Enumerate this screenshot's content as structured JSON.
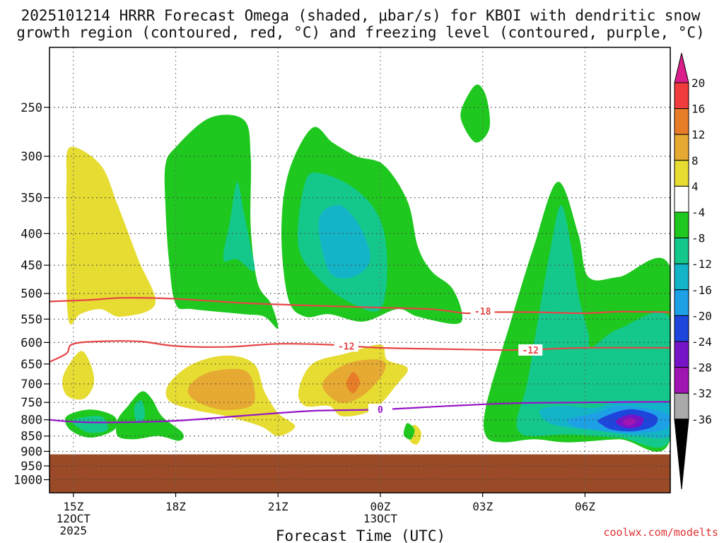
{
  "title_line1": "2025101214 HRRR Forecast Omega (shaded, μbar/s) for KBOI with dendritic snow",
  "title_line2": "growth region (contoured, red, °C) and freezing level (contoured, purple, °C)",
  "credit": "coolwx.com/modelts",
  "chart_data": {
    "type": "time-height contour",
    "xlabel": "Forecast Time (UTC)",
    "x_range_hours": [
      14.3,
      32.5
    ],
    "x_ticks": [
      {
        "hour": 15,
        "label": "15Z",
        "sub1": "12OCT",
        "sub2": "2025"
      },
      {
        "hour": 18,
        "label": "18Z"
      },
      {
        "hour": 21,
        "label": "21Z"
      },
      {
        "hour": 24,
        "label": "00Z",
        "sub1": "13OCT"
      },
      {
        "hour": 27,
        "label": "03Z"
      },
      {
        "hour": 30,
        "label": "06Z"
      }
    ],
    "y_scale": "log",
    "y_range_hPa": [
      1050,
      200
    ],
    "y_ticks": [
      250,
      300,
      350,
      400,
      450,
      500,
      550,
      600,
      650,
      700,
      750,
      800,
      850,
      900,
      950,
      1000
    ],
    "grid": true,
    "surface_pressure_hPa": 910,
    "colorbar": {
      "labels": [
        "20",
        "16",
        "12",
        "8",
        "4",
        "-4",
        "-8",
        "-12",
        "-16",
        "-20",
        "-24",
        "-28",
        "-32",
        "-36"
      ],
      "colors": [
        "#f03c3c",
        "#e87d28",
        "#e6aa32",
        "#e6dc32",
        "#ffffff",
        "#1ec81e",
        "#14c88c",
        "#14b4c8",
        "#1ea0e6",
        "#1e46dc",
        "#7814c8",
        "#a014b4",
        "#aaaaaa"
      ],
      "top_arrow_color": "#dc1e8c",
      "bottom_arrow_color": "#000000"
    },
    "contours": [
      {
        "label": "-18",
        "color": "#e64646",
        "points": [
          [
            14.3,
            515
          ],
          [
            15.5,
            512
          ],
          [
            16.5,
            508
          ],
          [
            18,
            510
          ],
          [
            20,
            518
          ],
          [
            22,
            523
          ],
          [
            24,
            527
          ],
          [
            25.5,
            530
          ],
          [
            26.5,
            538
          ],
          [
            27,
            536
          ],
          [
            28.5,
            536
          ],
          [
            30,
            538
          ],
          [
            31,
            535
          ],
          [
            32.5,
            536
          ]
        ]
      },
      {
        "label": "-12",
        "color": "#e64646",
        "points": [
          [
            14.3,
            645
          ],
          [
            14.8,
            625
          ],
          [
            15,
            603
          ],
          [
            16,
            597
          ],
          [
            17,
            598
          ],
          [
            18,
            608
          ],
          [
            19.5,
            610
          ],
          [
            21,
            603
          ],
          [
            22.5,
            605
          ],
          [
            24,
            612
          ],
          [
            26,
            615
          ],
          [
            28,
            617
          ],
          [
            30,
            612
          ],
          [
            32.5,
            612
          ]
        ]
      },
      {
        "label": "0",
        "color": "#9614c8",
        "points": [
          [
            14.3,
            800
          ],
          [
            15,
            806
          ],
          [
            16,
            808
          ],
          [
            18,
            803
          ],
          [
            20,
            788
          ],
          [
            22,
            774
          ],
          [
            24,
            770
          ],
          [
            26,
            760
          ],
          [
            28,
            752
          ],
          [
            30,
            750
          ],
          [
            32.5,
            748
          ]
        ]
      }
    ],
    "shaded_regions": [
      {
        "level": "4",
        "color": "#e6dc32",
        "points": [
          [
            14.9,
            290
          ],
          [
            15.8,
            310
          ],
          [
            16.3,
            360
          ],
          [
            16.9,
            440
          ],
          [
            17.4,
            520
          ],
          [
            16.4,
            545
          ],
          [
            15.8,
            530
          ],
          [
            15.2,
            540
          ],
          [
            14.9,
            560
          ],
          [
            14.8,
            500
          ],
          [
            14.8,
            400
          ],
          [
            14.8,
            330
          ]
        ]
      },
      {
        "level": "4",
        "color": "#e6dc32",
        "points": [
          [
            14.7,
            680
          ],
          [
            15.2,
            620
          ],
          [
            15.5,
            650
          ],
          [
            15.6,
            700
          ],
          [
            15.3,
            740
          ],
          [
            14.8,
            730
          ]
        ]
      },
      {
        "level": "4",
        "color": "#e6dc32",
        "points": [
          [
            17.8,
            700
          ],
          [
            18.5,
            650
          ],
          [
            19.5,
            630
          ],
          [
            20.3,
            650
          ],
          [
            20.6,
            720
          ],
          [
            21,
            780
          ],
          [
            21.5,
            820
          ],
          [
            21,
            850
          ],
          [
            20.5,
            820
          ],
          [
            19.5,
            790
          ],
          [
            18.5,
            770
          ],
          [
            17.8,
            745
          ]
        ]
      },
      {
        "level": "4",
        "color": "#e6dc32",
        "points": [
          [
            21.6,
            720
          ],
          [
            22,
            650
          ],
          [
            23,
            625
          ],
          [
            24,
            605
          ],
          [
            24.2,
            640
          ],
          [
            24.8,
            660
          ],
          [
            24.5,
            700
          ],
          [
            23.8,
            770
          ],
          [
            22.9,
            790
          ],
          [
            22.5,
            760
          ],
          [
            21.8,
            760
          ]
        ]
      },
      {
        "level": "4",
        "color": "#e6dc32",
        "points": [
          [
            24.8,
            840
          ],
          [
            25,
            815
          ],
          [
            25.2,
            840
          ],
          [
            25.1,
            875
          ],
          [
            24.9,
            870
          ]
        ]
      },
      {
        "level": "8",
        "color": "#e6aa32",
        "points": [
          [
            18.4,
            705
          ],
          [
            19,
            670
          ],
          [
            20,
            665
          ],
          [
            20.3,
            710
          ],
          [
            20.2,
            760
          ],
          [
            19.3,
            770
          ],
          [
            18.5,
            740
          ]
        ]
      },
      {
        "level": "8",
        "color": "#e6aa32",
        "points": [
          [
            22.3,
            700
          ],
          [
            23,
            650
          ],
          [
            24,
            640
          ],
          [
            24.1,
            670
          ],
          [
            23.5,
            730
          ],
          [
            22.8,
            750
          ]
        ]
      },
      {
        "level": "12",
        "color": "#e87d28",
        "points": [
          [
            23,
            700
          ],
          [
            23.2,
            670
          ],
          [
            23.4,
            695
          ],
          [
            23.2,
            725
          ]
        ]
      },
      {
        "level": "-4",
        "color": "#1ec81e",
        "points": [
          [
            17.7,
            310
          ],
          [
            18,
            290
          ],
          [
            19,
            260
          ],
          [
            20,
            262
          ],
          [
            20.2,
            300
          ],
          [
            20.2,
            390
          ],
          [
            20.4,
            480
          ],
          [
            20.8,
            520
          ],
          [
            21,
            570
          ],
          [
            20.6,
            545
          ],
          [
            20,
            540
          ],
          [
            18.5,
            530
          ],
          [
            18,
            520
          ],
          [
            17.8,
            440
          ],
          [
            17.7,
            360
          ]
        ]
      },
      {
        "level": "-4",
        "color": "#1ec81e",
        "points": [
          [
            21.1,
            400
          ],
          [
            21.3,
            320
          ],
          [
            22,
            270
          ],
          [
            22.6,
            285
          ],
          [
            23.3,
            300
          ],
          [
            24.1,
            310
          ],
          [
            24.8,
            355
          ],
          [
            25.1,
            420
          ],
          [
            25.5,
            460
          ],
          [
            26.1,
            490
          ],
          [
            26.4,
            540
          ],
          [
            26.2,
            560
          ],
          [
            25.1,
            545
          ],
          [
            24.5,
            530
          ],
          [
            23.5,
            555
          ],
          [
            22.5,
            540
          ],
          [
            21.8,
            545
          ],
          [
            21.3,
            510
          ]
        ]
      },
      {
        "level": "-4",
        "color": "#1ec81e",
        "points": [
          [
            26.4,
            250
          ],
          [
            26.8,
            230
          ],
          [
            27.1,
            240
          ],
          [
            27.2,
            270
          ],
          [
            26.8,
            285
          ],
          [
            26.4,
            265
          ]
        ]
      },
      {
        "level": "-4",
        "color": "#1ec81e",
        "points": [
          [
            14.8,
            790
          ],
          [
            15.5,
            770
          ],
          [
            16.2,
            790
          ],
          [
            16.2,
            830
          ],
          [
            15.5,
            855
          ],
          [
            14.9,
            830
          ]
        ]
      },
      {
        "level": "-4",
        "color": "#1ec81e",
        "points": [
          [
            16.3,
            800
          ],
          [
            16.6,
            760
          ],
          [
            17,
            720
          ],
          [
            17.3,
            740
          ],
          [
            17.6,
            790
          ],
          [
            18.2,
            840
          ],
          [
            18.1,
            865
          ],
          [
            17.5,
            850
          ],
          [
            16.8,
            860
          ],
          [
            16.3,
            850
          ]
        ]
      },
      {
        "level": "-4",
        "color": "#1ec81e",
        "points": [
          [
            24.7,
            830
          ],
          [
            24.8,
            810
          ],
          [
            25,
            830
          ],
          [
            24.9,
            860
          ],
          [
            24.7,
            850
          ]
        ]
      },
      {
        "level": "-4",
        "color": "#1ec81e",
        "points": [
          [
            27.1,
            760
          ],
          [
            27.8,
            560
          ],
          [
            28.5,
            420
          ],
          [
            29.2,
            330
          ],
          [
            29.8,
            400
          ],
          [
            30.1,
            470
          ],
          [
            31,
            470
          ],
          [
            32.5,
            455
          ],
          [
            32.5,
            860
          ],
          [
            31,
            860
          ],
          [
            29.5,
            870
          ],
          [
            28.5,
            860
          ],
          [
            27.6,
            870
          ],
          [
            27.1,
            850
          ]
        ]
      },
      {
        "level": "-8",
        "color": "#14c88c",
        "points": [
          [
            19.4,
            440
          ],
          [
            19.6,
            380
          ],
          [
            19.8,
            330
          ],
          [
            20,
            370
          ],
          [
            20.2,
            420
          ],
          [
            20.3,
            460
          ],
          [
            19.8,
            440
          ]
        ]
      },
      {
        "level": "-8",
        "color": "#14c88c",
        "points": [
          [
            21.6,
            420
          ],
          [
            21.8,
            330
          ],
          [
            22.3,
            320
          ],
          [
            23.3,
            340
          ],
          [
            24,
            380
          ],
          [
            24.2,
            450
          ],
          [
            24,
            530
          ],
          [
            23.2,
            520
          ],
          [
            22.3,
            480
          ]
        ]
      },
      {
        "level": "-8",
        "color": "#14c88c",
        "points": [
          [
            15,
            800
          ],
          [
            15.8,
            790
          ],
          [
            16,
            830
          ],
          [
            15.5,
            840
          ],
          [
            15.1,
            820
          ]
        ]
      },
      {
        "level": "-8",
        "color": "#14c88c",
        "points": [
          [
            16.8,
            760
          ],
          [
            17,
            745
          ],
          [
            17.1,
            790
          ],
          [
            16.9,
            810
          ],
          [
            16.8,
            790
          ]
        ]
      },
      {
        "level": "-8",
        "color": "#14c88c",
        "points": [
          [
            28,
            800
          ],
          [
            28.3,
            700
          ],
          [
            28.6,
            560
          ],
          [
            29,
            420
          ],
          [
            29.3,
            360
          ],
          [
            29.6,
            420
          ],
          [
            29.8,
            500
          ],
          [
            30.1,
            580
          ],
          [
            30.2,
            610
          ],
          [
            31,
            570
          ],
          [
            32.5,
            550
          ],
          [
            32.5,
            860
          ],
          [
            31,
            855
          ],
          [
            29.5,
            845
          ],
          [
            28.5,
            850
          ],
          [
            28.1,
            840
          ]
        ]
      },
      {
        "level": "-12",
        "color": "#14b4c8",
        "points": [
          [
            22.2,
            380
          ],
          [
            22.8,
            360
          ],
          [
            23.4,
            390
          ],
          [
            23.7,
            440
          ],
          [
            23.2,
            470
          ],
          [
            22.5,
            460
          ]
        ]
      },
      {
        "level": "-12",
        "color": "#14b4c8",
        "points": [
          [
            28.7,
            770
          ],
          [
            29.3,
            760
          ],
          [
            30.3,
            765
          ],
          [
            31,
            745
          ],
          [
            32,
            750
          ],
          [
            32.5,
            760
          ],
          [
            32.5,
            850
          ],
          [
            31.5,
            850
          ],
          [
            30.5,
            835
          ],
          [
            29.3,
            820
          ],
          [
            28.8,
            800
          ]
        ]
      },
      {
        "level": "-16",
        "color": "#1ea0e6",
        "points": [
          [
            29.5,
            800
          ],
          [
            30.3,
            780
          ],
          [
            31,
            760
          ],
          [
            32,
            770
          ],
          [
            32.5,
            790
          ],
          [
            32.3,
            830
          ],
          [
            31.3,
            840
          ],
          [
            30.3,
            830
          ],
          [
            29.7,
            820
          ]
        ]
      },
      {
        "level": "-20",
        "color": "#1e46dc",
        "points": [
          [
            30.4,
            800
          ],
          [
            31,
            775
          ],
          [
            31.5,
            770
          ],
          [
            32.1,
            790
          ],
          [
            32,
            820
          ],
          [
            31.4,
            835
          ],
          [
            30.8,
            830
          ],
          [
            30.5,
            815
          ]
        ]
      },
      {
        "level": "-24",
        "color": "#7814c8",
        "points": [
          [
            30.9,
            805
          ],
          [
            31.3,
            785
          ],
          [
            31.7,
            795
          ],
          [
            31.6,
            820
          ],
          [
            31.2,
            825
          ]
        ]
      },
      {
        "level": "-28",
        "color": "#a014b4",
        "points": [
          [
            31.1,
            808
          ],
          [
            31.3,
            795
          ],
          [
            31.5,
            805
          ],
          [
            31.3,
            818
          ]
        ]
      }
    ]
  }
}
